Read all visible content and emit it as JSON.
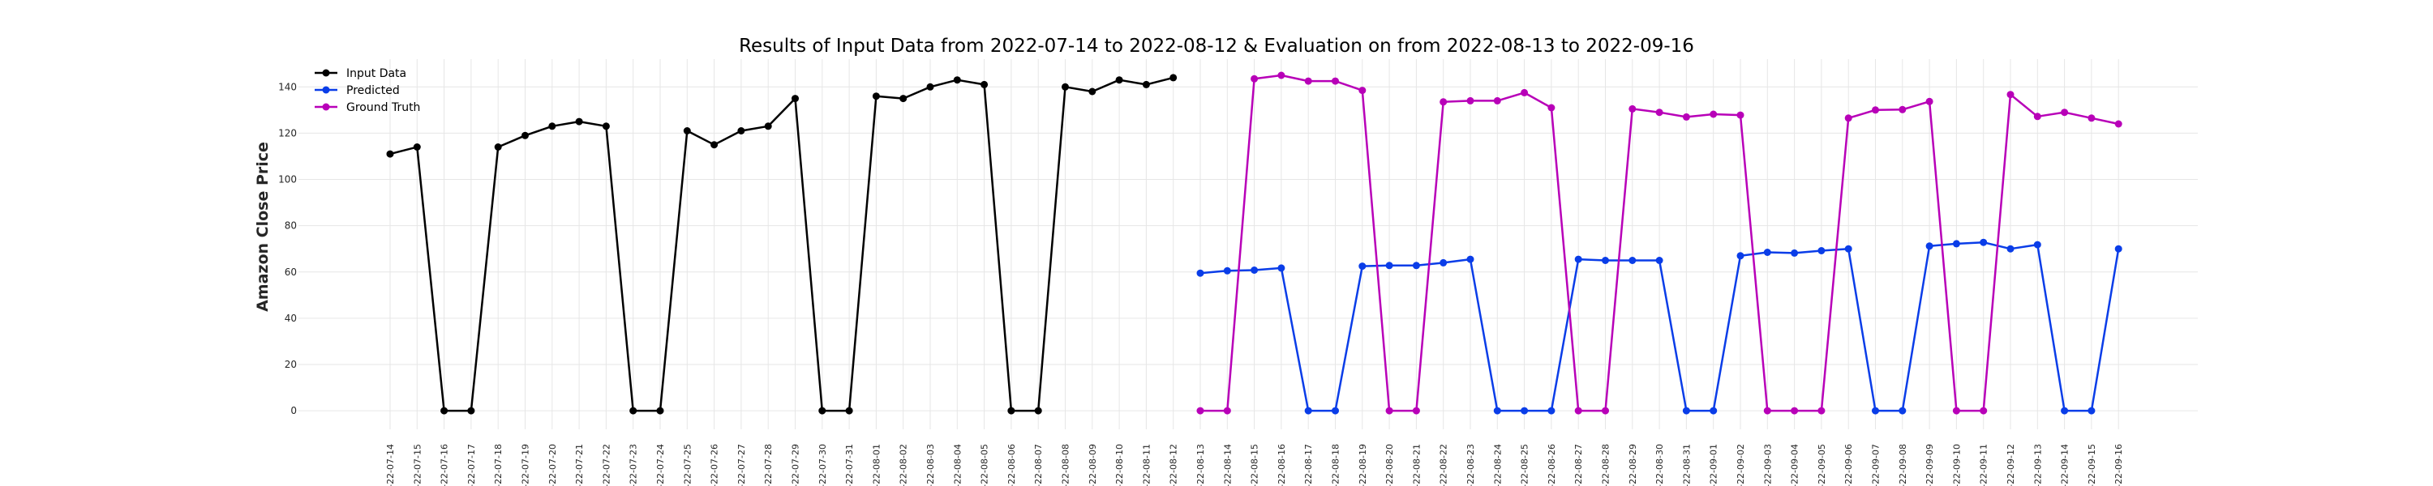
{
  "chart_data": {
    "type": "line",
    "title": "Results of Input Data from 2022-07-14 to 2022-08-12 & Evaluation on from 2022-08-13 to 2022-09-16",
    "xlabel": "",
    "ylabel": "Amazon Close Price",
    "ylim": [
      -8,
      152
    ],
    "yticks": [
      0,
      20,
      40,
      60,
      80,
      100,
      120,
      140
    ],
    "grid": true,
    "legend_position": "top-left",
    "x": [
      "2022-07-14",
      "2022-07-15",
      "2022-07-16",
      "2022-07-17",
      "2022-07-18",
      "2022-07-19",
      "2022-07-20",
      "2022-07-21",
      "2022-07-22",
      "2022-07-23",
      "2022-07-24",
      "2022-07-25",
      "2022-07-26",
      "2022-07-27",
      "2022-07-28",
      "2022-07-29",
      "2022-07-30",
      "2022-07-31",
      "2022-08-01",
      "2022-08-02",
      "2022-08-03",
      "2022-08-04",
      "2022-08-05",
      "2022-08-06",
      "2022-08-07",
      "2022-08-08",
      "2022-08-09",
      "2022-08-10",
      "2022-08-11",
      "2022-08-12",
      "2022-08-13",
      "2022-08-14",
      "2022-08-15",
      "2022-08-16",
      "2022-08-17",
      "2022-08-18",
      "2022-08-19",
      "2022-08-20",
      "2022-08-21",
      "2022-08-22",
      "2022-08-23",
      "2022-08-24",
      "2022-08-25",
      "2022-08-26",
      "2022-08-27",
      "2022-08-28",
      "2022-08-29",
      "2022-08-30",
      "2022-08-31",
      "2022-09-01",
      "2022-09-02",
      "2022-09-03",
      "2022-09-04",
      "2022-09-05",
      "2022-09-06",
      "2022-09-07",
      "2022-09-08",
      "2022-09-09",
      "2022-09-10",
      "2022-09-11",
      "2022-09-12",
      "2022-09-13",
      "2022-09-14",
      "2022-09-15",
      "2022-09-16"
    ],
    "x_tick_labels": [
      "-22-07-14",
      "-22-07-15",
      "-22-07-16",
      "-22-07-17",
      "-22-07-18",
      "-22-07-19",
      "-22-07-20",
      "-22-07-21",
      "-22-07-22",
      "-22-07-23",
      "-22-07-24",
      "-22-07-25",
      "-22-07-26",
      "-22-07-27",
      "-22-07-28",
      "-22-07-29",
      "-22-07-30",
      "-22-07-31",
      "-22-08-01",
      "-22-08-02",
      "-22-08-03",
      "-22-08-04",
      "-22-08-05",
      "-22-08-06",
      "-22-08-07",
      "-22-08-08",
      "-22-08-09",
      "-22-08-10",
      "-22-08-11",
      "-22-08-12",
      "-22-08-13",
      "-22-08-14",
      "-22-08-15",
      "-22-08-16",
      "-22-08-17",
      "-22-08-18",
      "-22-08-19",
      "-22-08-20",
      "-22-08-21",
      "-22-08-22",
      "-22-08-23",
      "-22-08-24",
      "-22-08-25",
      "-22-08-26",
      "-22-08-27",
      "-22-08-28",
      "-22-08-29",
      "-22-08-30",
      "-22-08-31",
      "-22-09-01",
      "-22-09-02",
      "-22-09-03",
      "-22-09-04",
      "-22-09-05",
      "-22-09-06",
      "-22-09-07",
      "-22-09-08",
      "-22-09-09",
      "-22-09-10",
      "-22-09-11",
      "-22-09-12",
      "-22-09-13",
      "-22-09-14",
      "-22-09-15",
      "-22-09-16"
    ],
    "series": [
      {
        "name": "Input Data",
        "color": "#000000",
        "x": [
          "2022-07-14",
          "2022-07-15",
          "2022-07-16",
          "2022-07-17",
          "2022-07-18",
          "2022-07-19",
          "2022-07-20",
          "2022-07-21",
          "2022-07-22",
          "2022-07-23",
          "2022-07-24",
          "2022-07-25",
          "2022-07-26",
          "2022-07-27",
          "2022-07-28",
          "2022-07-29",
          "2022-07-30",
          "2022-07-31",
          "2022-08-01",
          "2022-08-02",
          "2022-08-03",
          "2022-08-04",
          "2022-08-05",
          "2022-08-06",
          "2022-08-07",
          "2022-08-08",
          "2022-08-09",
          "2022-08-10",
          "2022-08-11",
          "2022-08-12"
        ],
        "values": [
          111,
          114,
          0,
          0,
          114,
          119,
          123,
          125,
          123,
          0,
          0,
          121,
          115,
          121,
          123,
          135,
          0,
          0,
          136,
          135,
          140,
          143,
          141,
          0,
          0,
          140,
          138,
          143,
          141,
          144
        ]
      },
      {
        "name": "Predicted",
        "color": "#0a3de8",
        "x": [
          "2022-08-13",
          "2022-08-14",
          "2022-08-15",
          "2022-08-16",
          "2022-08-17",
          "2022-08-18",
          "2022-08-19",
          "2022-08-20",
          "2022-08-21",
          "2022-08-22",
          "2022-08-23",
          "2022-08-24",
          "2022-08-25",
          "2022-08-26",
          "2022-08-27",
          "2022-08-28",
          "2022-08-29",
          "2022-08-30",
          "2022-08-31",
          "2022-09-01",
          "2022-09-02",
          "2022-09-03",
          "2022-09-04",
          "2022-09-05",
          "2022-09-06",
          "2022-09-07",
          "2022-09-08",
          "2022-09-09",
          "2022-09-10",
          "2022-09-11",
          "2022-09-12",
          "2022-09-13",
          "2022-09-14",
          "2022-09-15",
          "2022-09-16"
        ],
        "values": [
          59.5,
          60.5,
          60.8,
          61.7,
          0,
          0,
          62.5,
          62.8,
          62.8,
          64.0,
          65.5,
          0,
          0,
          0,
          65.5,
          65.0,
          65.0,
          65.0,
          0,
          0,
          67.0,
          68.5,
          68.2,
          69.2,
          70.0,
          0,
          0,
          71.2,
          72.2,
          72.8,
          70.0,
          71.8,
          0,
          0,
          70.0
        ]
      },
      {
        "name": "Ground Truth",
        "color": "#b800b8",
        "x": [
          "2022-08-13",
          "2022-08-14",
          "2022-08-15",
          "2022-08-16",
          "2022-08-17",
          "2022-08-18",
          "2022-08-19",
          "2022-08-20",
          "2022-08-21",
          "2022-08-22",
          "2022-08-23",
          "2022-08-24",
          "2022-08-25",
          "2022-08-26",
          "2022-08-27",
          "2022-08-28",
          "2022-08-29",
          "2022-08-30",
          "2022-08-31",
          "2022-09-01",
          "2022-09-02",
          "2022-09-03",
          "2022-09-04",
          "2022-09-05",
          "2022-09-06",
          "2022-09-07",
          "2022-09-08",
          "2022-09-09",
          "2022-09-10",
          "2022-09-11",
          "2022-09-12",
          "2022-09-13",
          "2022-09-14",
          "2022-09-15",
          "2022-09-16"
        ],
        "values": [
          0,
          0,
          143.5,
          145,
          142.5,
          142.5,
          138.5,
          0,
          0,
          133.5,
          134,
          134,
          137.5,
          131,
          0,
          0,
          130.5,
          129,
          127,
          128.2,
          127.8,
          0,
          0,
          0,
          126.5,
          130,
          130.2,
          133.7,
          0,
          0,
          136.7,
          127.2,
          129,
          126.5,
          124
        ]
      }
    ]
  }
}
